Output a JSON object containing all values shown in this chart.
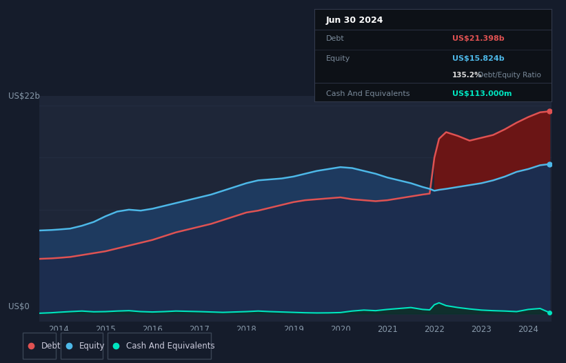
{
  "bg_color": "#151c2b",
  "plot_bg_color": "#1e2638",
  "grid_color": "#252e42",
  "title_box": {
    "date": "Jun 30 2024",
    "debt_label": "Debt",
    "debt_value": "US$21.398b",
    "debt_color": "#e05252",
    "equity_label": "Equity",
    "equity_value": "US$15.824b",
    "equity_color": "#4db8e8",
    "ratio_text": "135.2% Debt/Equity Ratio",
    "ratio_bold": "135.2%",
    "ratio_rest": " Debt/Equity Ratio",
    "cash_label": "Cash And Equivalents",
    "cash_value": "US$113.000m",
    "cash_color": "#00e5c0"
  },
  "ylabel_top": "US$22b",
  "ylabel_bottom": "US$0",
  "x_ticks": [
    2014,
    2015,
    2016,
    2017,
    2018,
    2019,
    2020,
    2021,
    2022,
    2023,
    2024
  ],
  "debt_color": "#e05252",
  "equity_color": "#4db8e8",
  "cash_color": "#00e5c0",
  "debt_fill_color": "#6b1515",
  "equity_fill_color": "#1c2d4f",
  "cash_fill_color": "#0d3028",
  "legend": [
    {
      "label": "Debt",
      "color": "#e05252"
    },
    {
      "label": "Equity",
      "color": "#4db8e8"
    },
    {
      "label": "Cash And Equivalents",
      "color": "#00e5c0"
    }
  ],
  "years": [
    2013.6,
    2013.85,
    2014.0,
    2014.25,
    2014.5,
    2014.75,
    2015.0,
    2015.25,
    2015.5,
    2015.75,
    2016.0,
    2016.25,
    2016.5,
    2016.75,
    2017.0,
    2017.25,
    2017.5,
    2017.75,
    2018.0,
    2018.25,
    2018.5,
    2018.75,
    2019.0,
    2019.25,
    2019.5,
    2019.75,
    2020.0,
    2020.25,
    2020.5,
    2020.75,
    2021.0,
    2021.25,
    2021.5,
    2021.75,
    2021.9,
    2022.0,
    2022.1,
    2022.25,
    2022.5,
    2022.75,
    2023.0,
    2023.25,
    2023.5,
    2023.75,
    2024.0,
    2024.25,
    2024.45
  ],
  "debt": [
    5.8,
    5.85,
    5.9,
    6.0,
    6.2,
    6.4,
    6.6,
    6.9,
    7.2,
    7.5,
    7.8,
    8.2,
    8.6,
    8.9,
    9.2,
    9.5,
    9.9,
    10.3,
    10.7,
    10.9,
    11.2,
    11.5,
    11.8,
    12.0,
    12.1,
    12.2,
    12.3,
    12.1,
    12.0,
    11.9,
    12.0,
    12.2,
    12.4,
    12.6,
    12.7,
    16.5,
    18.5,
    19.2,
    18.8,
    18.3,
    18.6,
    18.9,
    19.5,
    20.2,
    20.8,
    21.3,
    21.4
  ],
  "equity": [
    8.8,
    8.85,
    8.9,
    9.0,
    9.3,
    9.7,
    10.3,
    10.8,
    11.0,
    10.9,
    11.1,
    11.4,
    11.7,
    12.0,
    12.3,
    12.6,
    13.0,
    13.4,
    13.8,
    14.1,
    14.2,
    14.3,
    14.5,
    14.8,
    15.1,
    15.3,
    15.5,
    15.4,
    15.1,
    14.8,
    14.4,
    14.1,
    13.8,
    13.4,
    13.2,
    13.0,
    13.1,
    13.2,
    13.4,
    13.6,
    13.8,
    14.1,
    14.5,
    15.0,
    15.3,
    15.7,
    15.82
  ],
  "cash": [
    0.05,
    0.1,
    0.15,
    0.22,
    0.28,
    0.2,
    0.22,
    0.28,
    0.32,
    0.22,
    0.18,
    0.22,
    0.28,
    0.25,
    0.22,
    0.18,
    0.14,
    0.18,
    0.22,
    0.28,
    0.22,
    0.18,
    0.14,
    0.1,
    0.08,
    0.09,
    0.12,
    0.28,
    0.38,
    0.32,
    0.45,
    0.55,
    0.65,
    0.45,
    0.4,
    0.95,
    1.15,
    0.85,
    0.65,
    0.5,
    0.38,
    0.32,
    0.28,
    0.22,
    0.45,
    0.55,
    0.113
  ],
  "ylim_min": -0.8,
  "ylim_max": 23.0
}
